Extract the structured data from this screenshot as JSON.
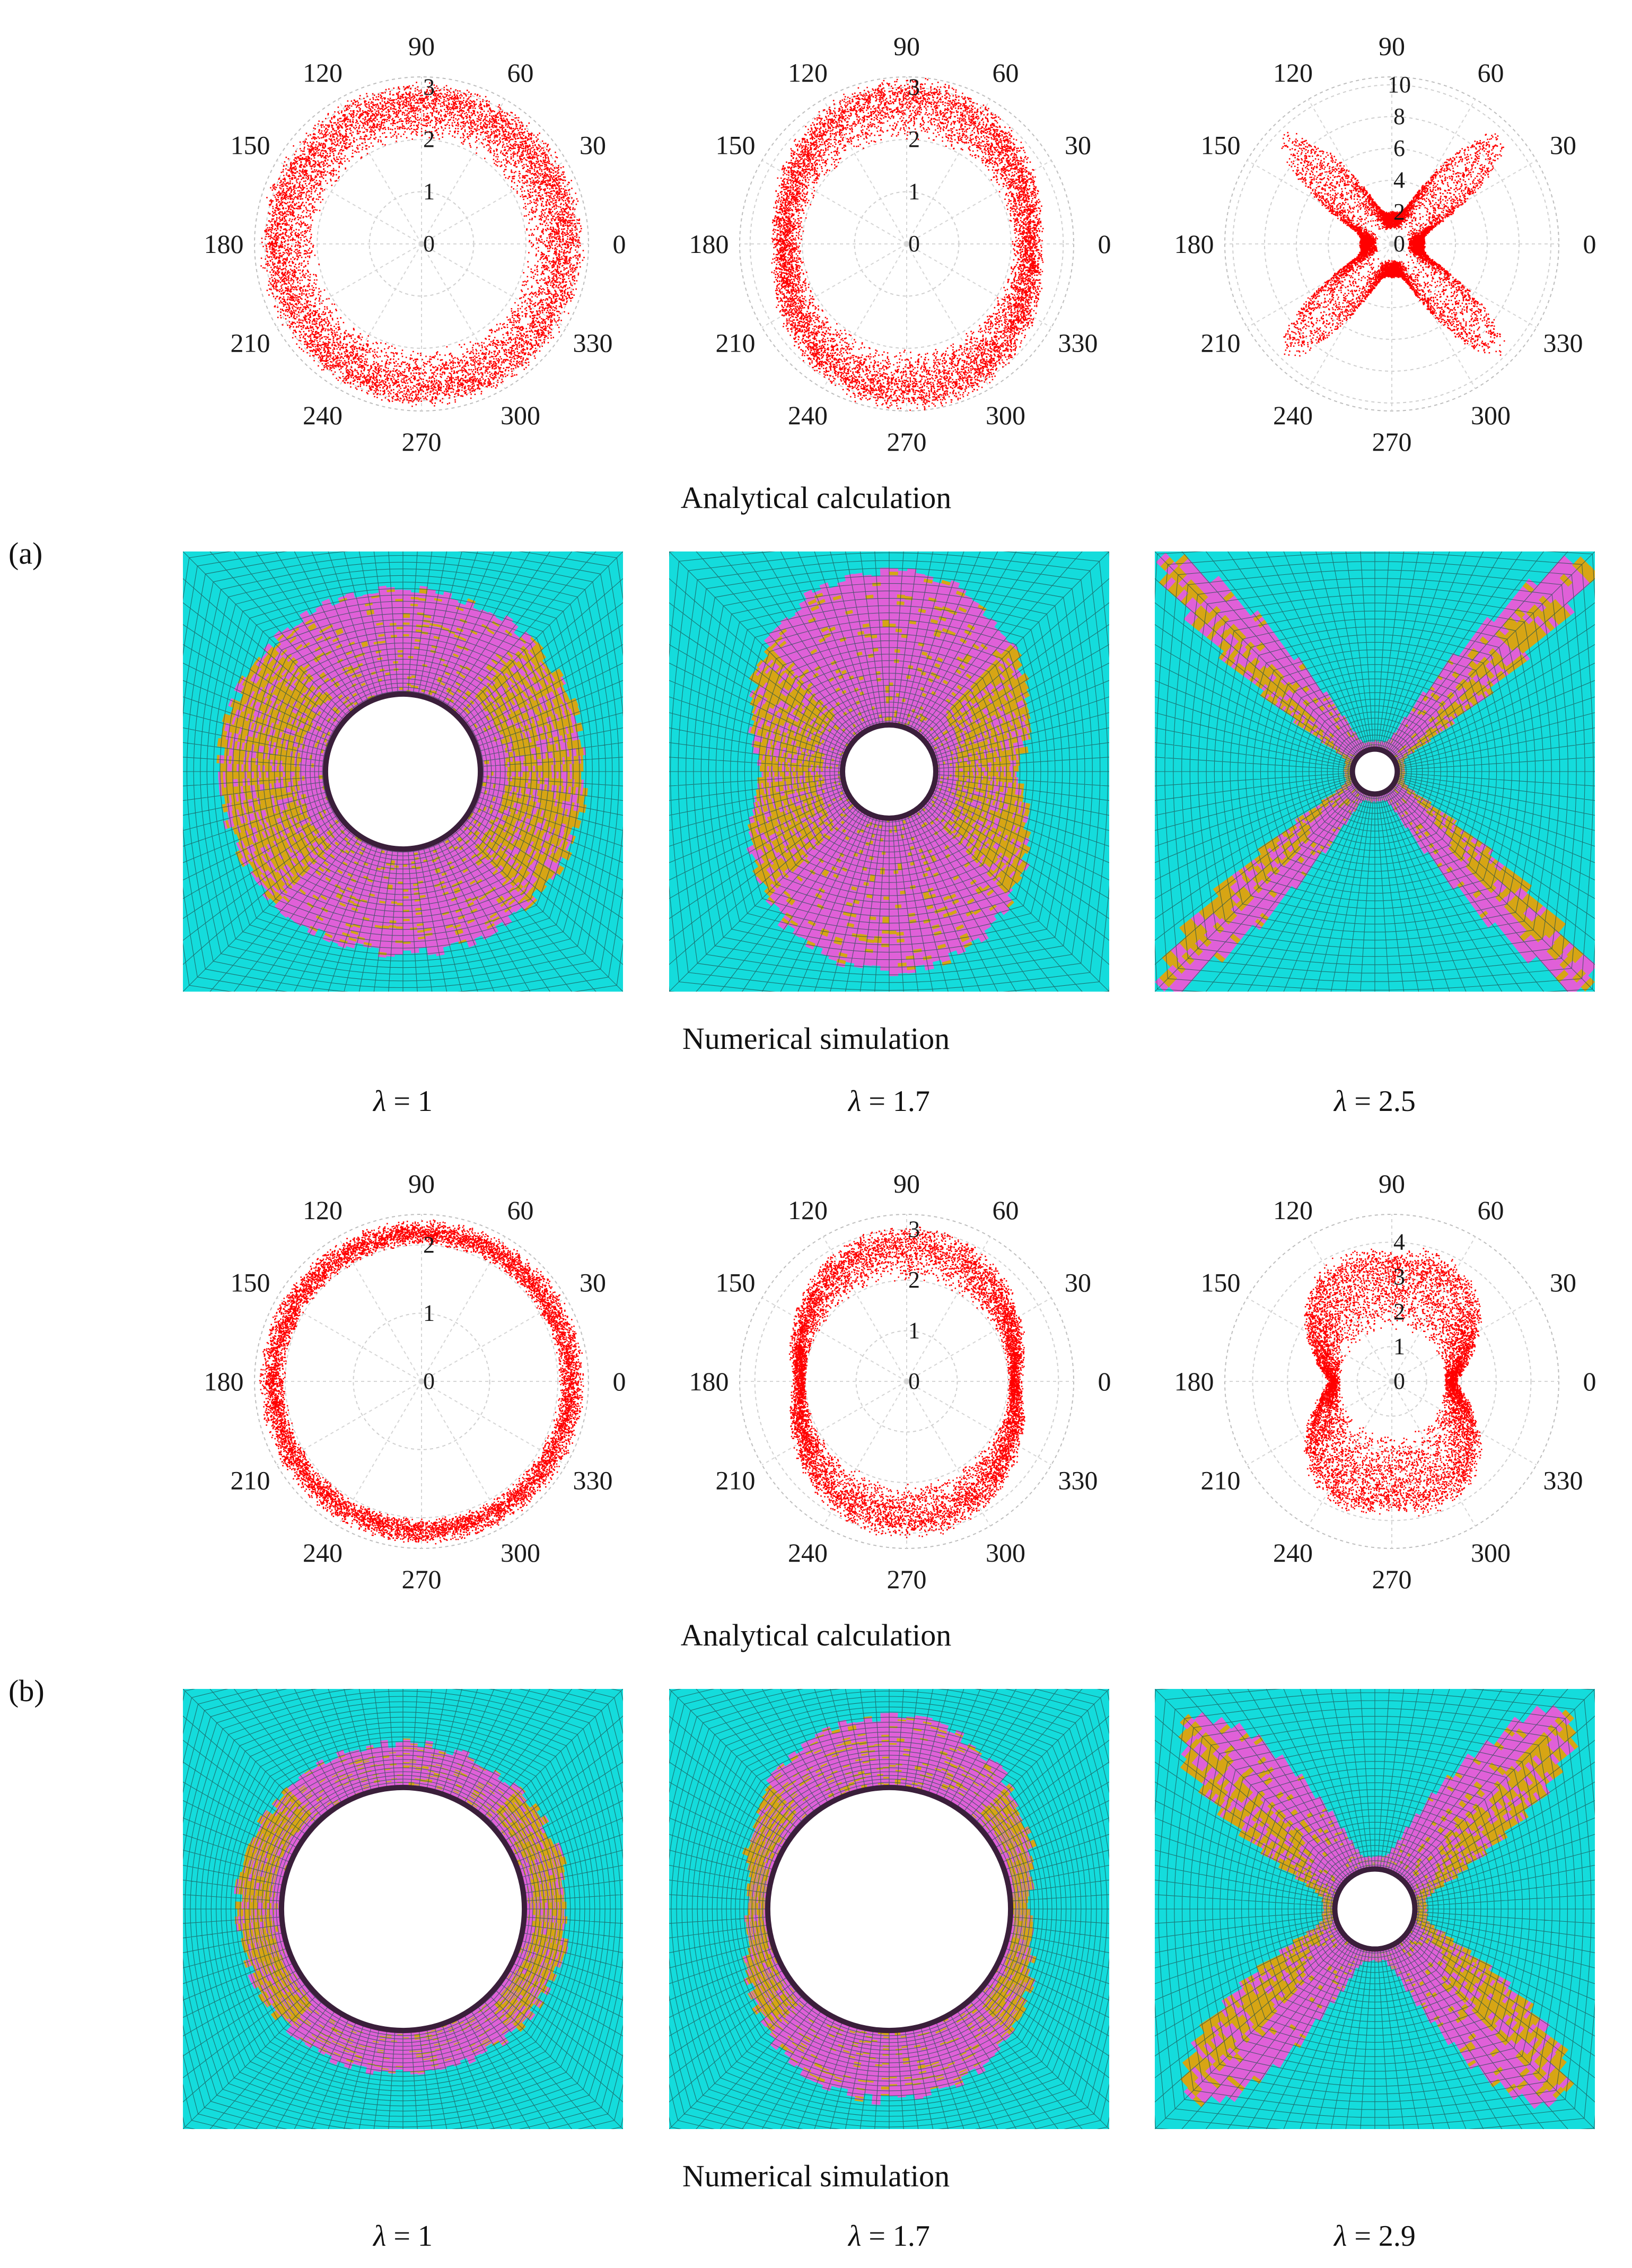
{
  "figure": {
    "analytical_caption": "Analytical calculation",
    "numerical_caption": "Numerical simulation",
    "panel_a_label": "(a)",
    "panel_b_label": "(b)",
    "lambda_prefix": "λ",
    "panel_a_lambdas": [
      " = 1",
      " = 1.7",
      " = 2.5"
    ],
    "panel_b_lambdas": [
      " = 1",
      " = 1.7",
      " = 2.9"
    ]
  },
  "colors": {
    "plastic_zone_points": "#ff0000",
    "mesh_elastic": "#14dcdc",
    "mesh_line": "#1d4d4d",
    "zone_magenta": "#e060d8",
    "zone_gold": "#d7a514",
    "lining_dark": "#3a1f3a"
  },
  "chart_data": [
    {
      "type": "polar-scatter",
      "panel": "a",
      "lambda": 1,
      "angular_ticks": [
        "0",
        "30",
        "60",
        "90",
        "120",
        "150",
        "180",
        "210",
        "240",
        "270",
        "300",
        "330"
      ],
      "radial_ticks": [
        "0",
        "1",
        "2",
        "3"
      ],
      "rmax": 3.2,
      "shape": "ring",
      "inner_radius": 2,
      "outer_radius": [
        3.0,
        3.0
      ]
    },
    {
      "type": "polar-scatter",
      "panel": "a",
      "lambda": 1.7,
      "angular_ticks": [
        "0",
        "30",
        "60",
        "90",
        "120",
        "150",
        "180",
        "210",
        "240",
        "270",
        "300",
        "330"
      ],
      "radial_ticks": [
        "0",
        "1",
        "2",
        "3"
      ],
      "rmax": 3.2,
      "shape": "ring",
      "inner_radius": 2,
      "outer_radius": [
        3.1,
        2.5
      ]
    },
    {
      "type": "polar-scatter",
      "panel": "a",
      "lambda": 2.5,
      "angular_ticks": [
        "0",
        "30",
        "60",
        "90",
        "120",
        "150",
        "180",
        "210",
        "240",
        "270",
        "300",
        "330"
      ],
      "radial_ticks": [
        "0",
        "2",
        "4",
        "6",
        "8",
        "10"
      ],
      "rmax": 10.5,
      "shape": "x",
      "inner_radius": 1,
      "outer_radius": [
        9.5,
        2.0
      ]
    },
    {
      "type": "polar-scatter",
      "panel": "b",
      "lambda": 1,
      "angular_ticks": [
        "0",
        "30",
        "60",
        "90",
        "120",
        "150",
        "180",
        "210",
        "240",
        "270",
        "300",
        "330"
      ],
      "radial_ticks": [
        "0",
        "1",
        "2"
      ],
      "rmax": 2.45,
      "shape": "ring",
      "inner_radius": 2,
      "outer_radius": [
        2.3,
        2.3
      ]
    },
    {
      "type": "polar-scatter",
      "panel": "b",
      "lambda": 1.7,
      "angular_ticks": [
        "0",
        "30",
        "60",
        "90",
        "120",
        "150",
        "180",
        "210",
        "240",
        "270",
        "300",
        "330"
      ],
      "radial_ticks": [
        "0",
        "1",
        "2",
        "3"
      ],
      "rmax": 3.3,
      "shape": "ring",
      "inner_radius": 2,
      "outer_radius": [
        3.0,
        2.2
      ]
    },
    {
      "type": "polar-scatter",
      "panel": "b",
      "lambda": 2.9,
      "angular_ticks": [
        "0",
        "30",
        "60",
        "90",
        "120",
        "150",
        "180",
        "210",
        "240",
        "270",
        "300",
        "330"
      ],
      "radial_ticks": [
        "0",
        "1",
        "2",
        "3",
        "4"
      ],
      "rmax": 4.8,
      "shape": "butterfly",
      "inner_radius": 1.5,
      "outer_radius": [
        4.2,
        1.8
      ]
    }
  ]
}
